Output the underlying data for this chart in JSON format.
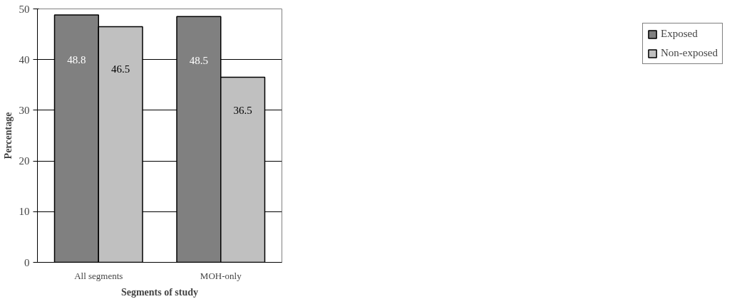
{
  "chart_data": {
    "type": "bar",
    "xlabel": "Segments of study",
    "ylabel": "Percentage",
    "categories": [
      "All segments",
      "MOH-only"
    ],
    "series": [
      {
        "name": "Exposed",
        "color": "#808080",
        "values": [
          48.8,
          48.5
        ]
      },
      {
        "name": "Non-exposed",
        "color": "#c0c0c0",
        "values": [
          46.5,
          36.5
        ]
      }
    ],
    "ylim": [
      0,
      50
    ],
    "yticks": [
      0,
      10,
      20,
      30,
      40,
      50
    ],
    "grid": "y",
    "legend": "right",
    "data_labels": true
  }
}
